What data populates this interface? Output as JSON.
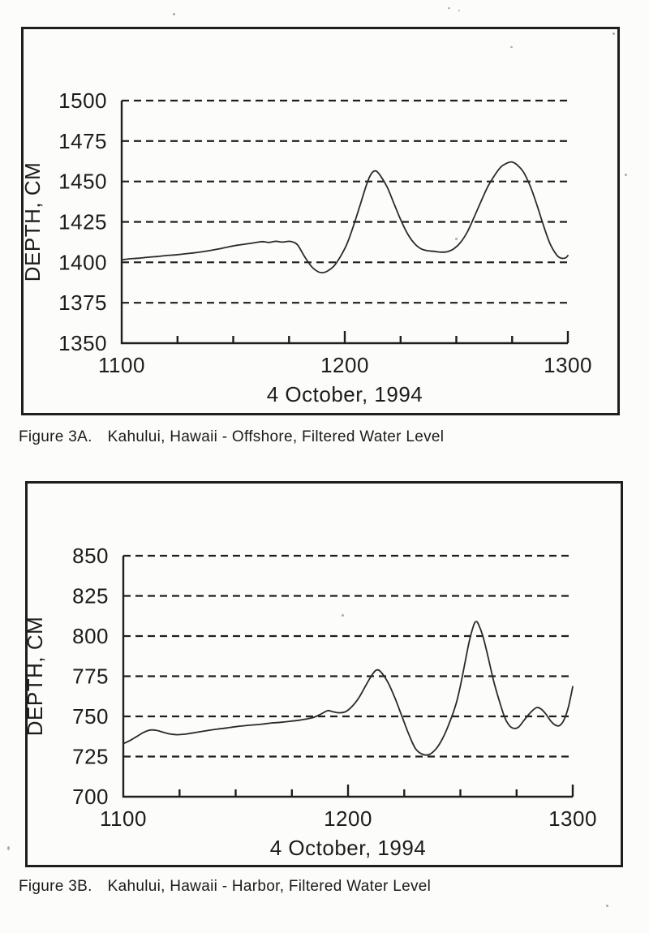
{
  "page": {
    "figures": [
      {
        "caption_label": "Figure 3A.",
        "caption_text": "Kahului, Hawaii - Offshore, Filtered Water Level"
      },
      {
        "caption_label": "Figure 3B.",
        "caption_text": "Kahului, Hawaii - Harbor, Filtered Water Level"
      }
    ]
  },
  "chart_data": [
    {
      "type": "line",
      "title": "",
      "xlabel": "4 October, 1994",
      "ylabel": "DEPTH, CM",
      "xlim": [
        1100,
        1300
      ],
      "ylim": [
        1350,
        1500
      ],
      "x_ticks": [
        1100,
        1200,
        1300
      ],
      "x_minor_tick_step": 25,
      "y_tick_step": 25,
      "y_tick_labels": [
        1350,
        1375,
        1400,
        1425,
        1450,
        1475,
        1500
      ],
      "grid": "horizontal-dashed",
      "legend": "none",
      "series": [
        {
          "name": "Offshore filtered water level",
          "x": [
            1100,
            1104,
            1108,
            1112,
            1116,
            1120,
            1124,
            1128,
            1132,
            1136,
            1140,
            1144,
            1148,
            1152,
            1156,
            1160,
            1163,
            1166,
            1169,
            1172,
            1175,
            1177,
            1179,
            1182,
            1185,
            1188,
            1190,
            1192,
            1195,
            1198,
            1201,
            1204,
            1207,
            1210,
            1212,
            1214,
            1216,
            1219,
            1222,
            1225,
            1228,
            1231,
            1234,
            1237,
            1240,
            1243,
            1246,
            1249,
            1252,
            1255,
            1258,
            1261,
            1264,
            1267,
            1270,
            1273,
            1275,
            1277,
            1280,
            1283,
            1286,
            1289,
            1292,
            1295,
            1297,
            1299,
            1300
          ],
          "y": [
            1401.5,
            1402.2,
            1402.6,
            1403.2,
            1403.6,
            1404.2,
            1404.6,
            1405.2,
            1405.8,
            1406.5,
            1407.4,
            1408.4,
            1409.6,
            1410.6,
            1411.4,
            1412.2,
            1412.8,
            1412.3,
            1413,
            1412.5,
            1413,
            1412.4,
            1410.5,
            1403.5,
            1397.5,
            1394.2,
            1393.6,
            1394.4,
            1397.5,
            1403.5,
            1411.5,
            1423,
            1436,
            1449,
            1455,
            1456.5,
            1453.5,
            1446.5,
            1436.5,
            1426.5,
            1418,
            1412,
            1408.5,
            1407.2,
            1406.8,
            1406.3,
            1406.6,
            1408.5,
            1412.5,
            1419,
            1428,
            1437.5,
            1446.5,
            1453.5,
            1459,
            1461.5,
            1462,
            1460.5,
            1456,
            1447.5,
            1436,
            1423,
            1411.5,
            1404.5,
            1402.6,
            1402.8,
            1404.2
          ]
        }
      ]
    },
    {
      "type": "line",
      "title": "",
      "xlabel": "4 October, 1994",
      "ylabel": "DEPTH, CM",
      "xlim": [
        1100,
        1300
      ],
      "ylim": [
        700,
        850
      ],
      "x_ticks": [
        1100,
        1200,
        1300
      ],
      "x_minor_tick_step": 25,
      "y_tick_step": 25,
      "y_tick_labels": [
        700,
        725,
        750,
        775,
        800,
        825,
        850
      ],
      "grid": "horizontal-dashed",
      "legend": "none",
      "series": [
        {
          "name": "Harbor filtered water level",
          "x": [
            1100,
            1103,
            1106,
            1109,
            1112,
            1115,
            1118,
            1121,
            1124,
            1127,
            1130,
            1134,
            1138,
            1142,
            1146,
            1150,
            1154,
            1158,
            1162,
            1166,
            1170,
            1174,
            1178,
            1182,
            1185,
            1188,
            1191,
            1193,
            1196,
            1199,
            1202,
            1205,
            1208,
            1211,
            1213,
            1215,
            1218,
            1221,
            1224,
            1227,
            1230,
            1233,
            1236,
            1239,
            1242,
            1245,
            1248,
            1250,
            1252,
            1254,
            1256,
            1257,
            1258,
            1260,
            1262,
            1265,
            1268,
            1270,
            1272,
            1274,
            1276,
            1278,
            1280,
            1282,
            1284,
            1286,
            1288,
            1290,
            1292,
            1294,
            1296,
            1298,
            1300
          ],
          "y": [
            733,
            735,
            737.5,
            740,
            741.5,
            741.2,
            740,
            739,
            738.6,
            738.9,
            739.5,
            740.4,
            741.3,
            742.1,
            742.8,
            743.6,
            744.2,
            744.7,
            745.2,
            745.9,
            746.3,
            746.9,
            747.6,
            748.5,
            749.5,
            751.5,
            753.6,
            753,
            752.2,
            753,
            756.5,
            762,
            769.5,
            776.5,
            779,
            777,
            770.5,
            761,
            750,
            739,
            730,
            726.5,
            726.2,
            729.5,
            736,
            745.5,
            757.5,
            769,
            783,
            797,
            807,
            809,
            807.5,
            800,
            789,
            771,
            756.5,
            748.5,
            744,
            742.5,
            743.5,
            747,
            750.5,
            753.5,
            755.5,
            754.5,
            751.5,
            747.5,
            744.8,
            744.2,
            747.5,
            755.5,
            768.5
          ]
        }
      ]
    }
  ]
}
